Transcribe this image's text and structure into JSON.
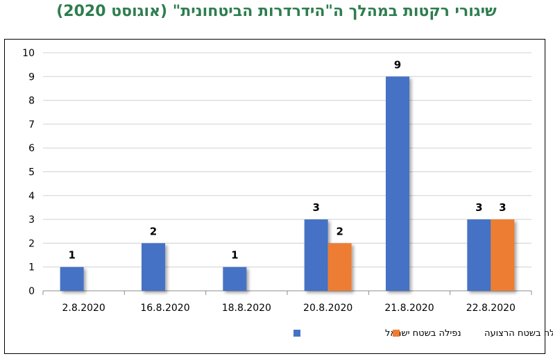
{
  "chart_data": {
    "type": "bar",
    "title": "שיגורי רקטות במהלך ה\"הידרדרות הביטחונית\" (אוגוסט 2020)",
    "categories": [
      "2.8.2020",
      "16.8.2020",
      "18.8.2020",
      "20.8.2020",
      "21.8.2020",
      "22.8.2020"
    ],
    "series": [
      {
        "name": "נפילה בשטח ישראל",
        "values": [
          1,
          2,
          1,
          3,
          9,
          3
        ],
        "color": "#4472c4"
      },
      {
        "name": "נפילה בשטח הרצועה",
        "values": [
          null,
          null,
          null,
          2,
          null,
          3
        ],
        "color": "#ed7d31"
      }
    ],
    "ylim": [
      0,
      10
    ],
    "yticks": [
      0,
      1,
      2,
      3,
      4,
      5,
      6,
      7,
      8,
      9,
      10
    ],
    "grid": true,
    "legend": "bottom",
    "xlabel": "",
    "ylabel": ""
  }
}
